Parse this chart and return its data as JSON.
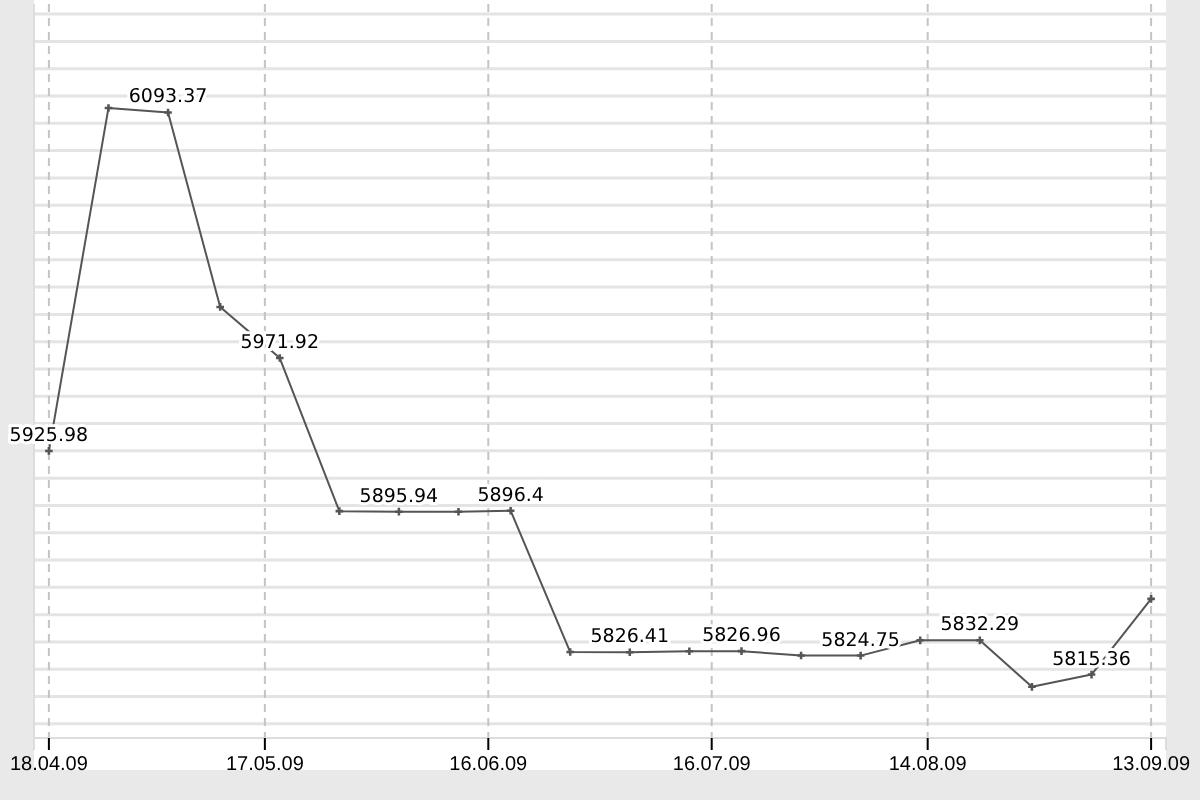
{
  "chart_data": {
    "type": "line",
    "x": [
      "2009-04-18",
      "2009-04-26",
      "2009-05-04",
      "2009-05-11",
      "2009-05-19",
      "2009-05-27",
      "2009-06-04",
      "2009-06-12",
      "2009-06-19",
      "2009-06-27",
      "2009-07-05",
      "2009-07-13",
      "2009-07-20",
      "2009-07-28",
      "2009-08-05",
      "2009-08-13",
      "2009-08-21",
      "2009-08-28",
      "2009-09-05",
      "2009-09-13"
    ],
    "series": [
      {
        "color": "#555555",
        "values": [
          5925.98,
          6095.6,
          6093.37,
          5997.2,
          5971.92,
          5896.2,
          5895.94,
          5895.9,
          5896.4,
          5826.5,
          5826.41,
          5826.9,
          5826.96,
          5824.8,
          5824.75,
          5832.3,
          5832.29,
          5809.3,
          5815.36,
          5852.8
        ],
        "value_labels": [
          "5925.98",
          null,
          "6093.37",
          null,
          "5971.92",
          null,
          "5895.94",
          null,
          "5896.4",
          null,
          "5826.41",
          null,
          "5826.96",
          null,
          "5824.75",
          null,
          "5832.29",
          null,
          "5815.36",
          null
        ]
      }
    ],
    "xlim": [
      "2009-04-16",
      "2009-09-15"
    ],
    "xticks": [
      {
        "value": "2009-04-18",
        "label": "18.04.09"
      },
      {
        "value": "2009-05-17",
        "label": "17.05.09"
      },
      {
        "value": "2009-06-16",
        "label": "16.06.09"
      },
      {
        "value": "2009-07-16",
        "label": "16.07.09"
      },
      {
        "value": "2009-08-14",
        "label": "14.08.09"
      },
      {
        "value": "2009-09-13",
        "label": "13.09.09"
      }
    ],
    "ylim": [
      5784,
      6147
    ],
    "yticks": [
      {
        "value": 5791,
        "label": null
      },
      {
        "value": 5804.5,
        "label": null
      },
      {
        "value": 5818,
        "label": null
      },
      {
        "value": 5831.5,
        "label": null
      },
      {
        "value": 5845,
        "label": null
      },
      {
        "value": 5858.5,
        "label": null
      },
      {
        "value": 5872,
        "label": null
      },
      {
        "value": 5885.5,
        "label": null
      },
      {
        "value": 5899,
        "label": null
      },
      {
        "value": 5912.5,
        "label": null
      },
      {
        "value": 5926,
        "label": null
      },
      {
        "value": 5939.5,
        "label": null
      },
      {
        "value": 5953,
        "label": null
      },
      {
        "value": 5966.5,
        "label": null
      },
      {
        "value": 5980,
        "label": null
      },
      {
        "value": 5993.5,
        "label": null
      },
      {
        "value": 6007,
        "label": null
      },
      {
        "value": 6020.5,
        "label": null
      },
      {
        "value": 6034,
        "label": null
      },
      {
        "value": 6047.5,
        "label": null
      },
      {
        "value": 6061,
        "label": null
      },
      {
        "value": 6074.5,
        "label": null
      },
      {
        "value": 6088,
        "label": null
      },
      {
        "value": 6101.5,
        "label": null
      },
      {
        "value": 6115,
        "label": null
      },
      {
        "value": 6128.5,
        "label": null
      },
      {
        "value": 6142,
        "label": null
      }
    ],
    "tick_labels": "x",
    "grid": true,
    "marker": "cross",
    "line_style": "solid"
  }
}
